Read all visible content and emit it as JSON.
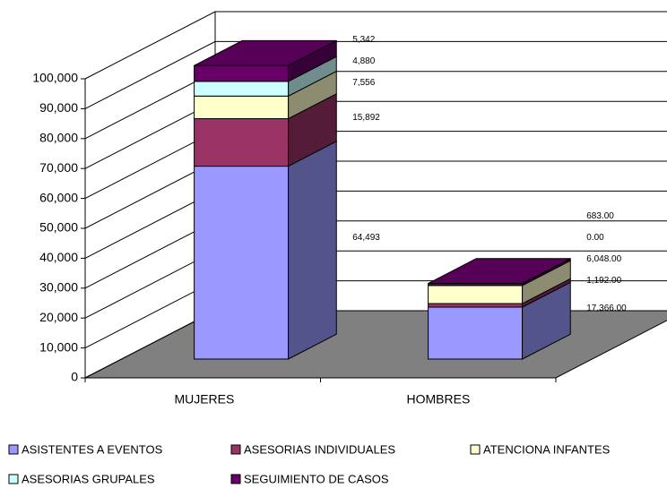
{
  "chart_data": {
    "type": "bar3d_stacked",
    "categories": [
      "MUJERES",
      "HOMBRES"
    ],
    "series": [
      {
        "name": "ASISTENTES A EVENTOS",
        "color": "#9999ff",
        "values": [
          64493,
          17366
        ],
        "value_labels": [
          "64,493",
          "17,366.00"
        ]
      },
      {
        "name": "ASESORIAS INDIVIDUALES",
        "color": "#993366",
        "values": [
          15892,
          1192
        ],
        "value_labels": [
          "15,892",
          "1,192.00"
        ]
      },
      {
        "name": "ATENCIONA INFANTES",
        "color": "#ffffcc",
        "values": [
          7556,
          6048
        ],
        "value_labels": [
          "7,556",
          "6,048.00"
        ]
      },
      {
        "name": "ASESORIAS GRUPALES",
        "color": "#ccffff",
        "values": [
          4880,
          0
        ],
        "value_labels": [
          "4,880",
          "0.00"
        ]
      },
      {
        "name": "SEGUIMIENTO DE CASOS",
        "color": "#660066",
        "values": [
          5342,
          683
        ],
        "value_labels": [
          "5,342",
          "683.00"
        ]
      }
    ],
    "ylim": [
      0,
      100000
    ],
    "yticks": [
      0,
      {
        "value": 10000,
        "label": "10,000"
      },
      {
        "value": 20000,
        "label": "20,000"
      },
      {
        "value": 30000,
        "label": "30,000"
      },
      {
        "value": 40000,
        "label": "40,000"
      },
      {
        "value": 50000,
        "label": "50,000"
      },
      {
        "value": 60000,
        "label": "60,000"
      },
      {
        "value": 70000,
        "label": "70,000"
      },
      {
        "value": 80000,
        "label": "80,000"
      },
      {
        "value": 90000,
        "label": "90,000"
      },
      {
        "value": 100000,
        "label": "100,000"
      }
    ],
    "grid": true,
    "legend": "bottom"
  }
}
